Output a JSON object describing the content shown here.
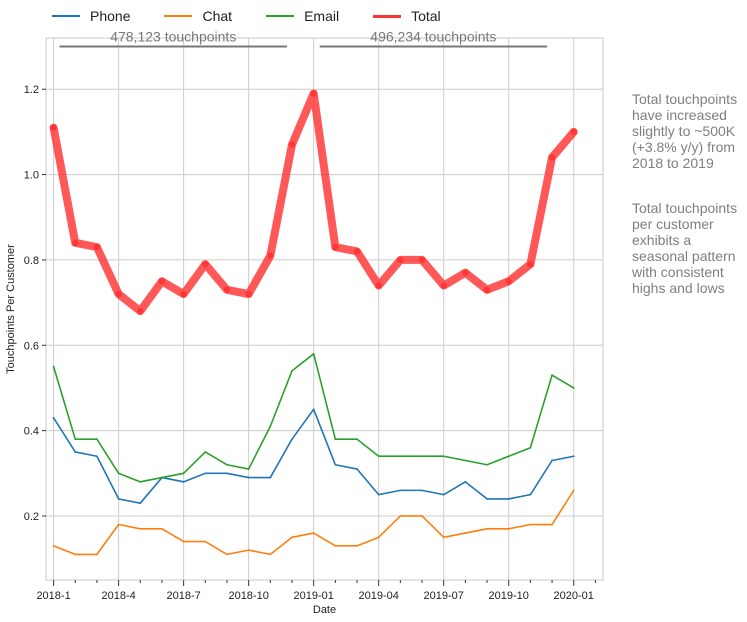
{
  "legend": {
    "items": [
      {
        "name": "Phone",
        "color": "#1f77b4"
      },
      {
        "name": "Chat",
        "color": "#ff7f0e"
      },
      {
        "name": "Email",
        "color": "#2ca02c"
      },
      {
        "name": "Total",
        "color": "#ff3333"
      }
    ]
  },
  "notes": {
    "note1": "Total touchpoints have increased slightly to ~500K (+3.8% y/y) from 2018 to 2019",
    "note2": "Total touchpoints per customer exhibits a seasonal pattern with consistent highs and lows"
  },
  "chart_data": {
    "type": "line",
    "xlabel": "Date",
    "ylabel": "Touchpoints Per Customer",
    "x": [
      "2018-01",
      "2018-02",
      "2018-03",
      "2018-04",
      "2018-05",
      "2018-06",
      "2018-07",
      "2018-08",
      "2018-09",
      "2018-10",
      "2018-11",
      "2018-12",
      "2019-01",
      "2019-02",
      "2019-03",
      "2019-04",
      "2019-05",
      "2019-06",
      "2019-07",
      "2019-08",
      "2019-09",
      "2019-10",
      "2019-11",
      "2019-12",
      "2020-01"
    ],
    "xlim": [
      "2017-12",
      "2020-02"
    ],
    "ylim": [
      0.05,
      1.32
    ],
    "grid": true,
    "legend_position": "top",
    "x_ticks": [
      {
        "value": "2018-01",
        "label": "2018-1"
      },
      {
        "value": "2018-04",
        "label": "2018-4"
      },
      {
        "value": "2018-07",
        "label": "2018-7"
      },
      {
        "value": "2018-10",
        "label": "2018-10"
      },
      {
        "value": "2019-01",
        "label": "2019-01"
      },
      {
        "value": "2019-04",
        "label": "2019-04"
      },
      {
        "value": "2019-07",
        "label": "2019-07"
      },
      {
        "value": "2019-10",
        "label": "2019-10"
      },
      {
        "value": "2020-01",
        "label": "2020-01"
      }
    ],
    "y_ticks": [
      0.2,
      0.4,
      0.6,
      0.8,
      1.0,
      1.2
    ],
    "y_tick_labels": [
      "0.2",
      "0.4",
      "0.6",
      "0.8",
      "1.0",
      "1.2"
    ],
    "series": [
      {
        "name": "Phone",
        "color": "#1f77b4",
        "values": [
          0.43,
          0.35,
          0.34,
          0.24,
          0.23,
          0.29,
          0.28,
          0.3,
          0.3,
          0.29,
          0.29,
          0.38,
          0.45,
          0.32,
          0.31,
          0.25,
          0.26,
          0.26,
          0.25,
          0.28,
          0.24,
          0.24,
          0.25,
          0.33,
          0.34
        ]
      },
      {
        "name": "Chat",
        "color": "#ff7f0e",
        "values": [
          0.13,
          0.11,
          0.11,
          0.18,
          0.17,
          0.17,
          0.14,
          0.14,
          0.11,
          0.12,
          0.11,
          0.15,
          0.16,
          0.13,
          0.13,
          0.15,
          0.2,
          0.2,
          0.15,
          0.16,
          0.17,
          0.17,
          0.18,
          0.18,
          0.26
        ]
      },
      {
        "name": "Email",
        "color": "#2ca02c",
        "values": [
          0.55,
          0.38,
          0.38,
          0.3,
          0.28,
          0.29,
          0.3,
          0.35,
          0.32,
          0.31,
          0.41,
          0.54,
          0.58,
          0.38,
          0.38,
          0.34,
          0.34,
          0.34,
          0.34,
          0.33,
          0.32,
          0.34,
          0.36,
          0.53,
          0.5
        ]
      },
      {
        "name": "Total",
        "color": "#ff3333",
        "values": [
          1.11,
          0.84,
          0.83,
          0.72,
          0.68,
          0.75,
          0.72,
          0.79,
          0.73,
          0.72,
          0.81,
          1.07,
          1.19,
          0.83,
          0.82,
          0.74,
          0.8,
          0.8,
          0.74,
          0.77,
          0.73,
          0.75,
          0.79,
          1.04,
          1.1
        ]
      }
    ],
    "annotations": [
      {
        "text": "478,123 touchpoints",
        "x_start": "2018-01",
        "x_end": "2018-12",
        "y": 1.3
      },
      {
        "text": "496,234 touchpoints",
        "x_start": "2019-01",
        "x_end": "2019-12",
        "y": 1.3
      }
    ]
  }
}
